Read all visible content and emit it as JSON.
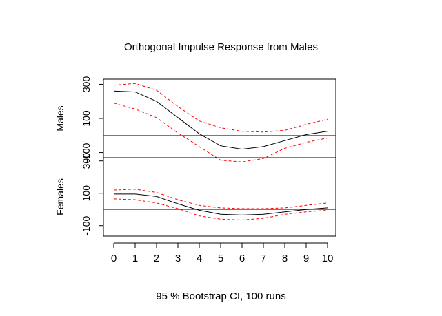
{
  "chart_data": {
    "type": "line",
    "title": "Orthogonal Impulse Response from Males",
    "caption": "95 % Bootstrap CI,  100 runs",
    "x": [
      0,
      1,
      2,
      3,
      4,
      5,
      6,
      7,
      8,
      9,
      10
    ],
    "xticks": [
      "0",
      "1",
      "2",
      "3",
      "4",
      "5",
      "6",
      "7",
      "8",
      "9",
      "10"
    ],
    "xlim": [
      0,
      10
    ],
    "colors": {
      "response": "#000000",
      "ci": "#ff0000",
      "zero_line": "#ff0000"
    },
    "panels": [
      {
        "ylabel": "Males",
        "ylim": [
          -130,
          330
        ],
        "yticks": [
          -100,
          100,
          300
        ],
        "ytick_labels": [
          "-100",
          "100",
          "300"
        ],
        "response": [
          260,
          255,
          200,
          105,
          10,
          -60,
          -80,
          -65,
          -30,
          5,
          25
        ],
        "ci_upper": [
          295,
          305,
          265,
          170,
          85,
          45,
          25,
          20,
          30,
          65,
          95
        ],
        "ci_lower": [
          190,
          155,
          105,
          15,
          -65,
          -145,
          -155,
          -135,
          -75,
          -40,
          -15
        ],
        "zero_line": 0
      },
      {
        "ylabel": "Females",
        "ylim": [
          -165,
          320
        ],
        "yticks": [
          -100,
          100,
          300
        ],
        "ytick_labels": [
          "-100",
          "100",
          "300"
        ],
        "response": [
          95,
          95,
          80,
          35,
          -5,
          -30,
          -35,
          -30,
          -15,
          0,
          10
        ],
        "ci_upper": [
          120,
          125,
          105,
          60,
          25,
          10,
          5,
          5,
          10,
          25,
          40
        ],
        "ci_lower": [
          65,
          60,
          40,
          5,
          -40,
          -60,
          -65,
          -55,
          -30,
          -15,
          -5
        ],
        "zero_line": 0
      }
    ]
  }
}
